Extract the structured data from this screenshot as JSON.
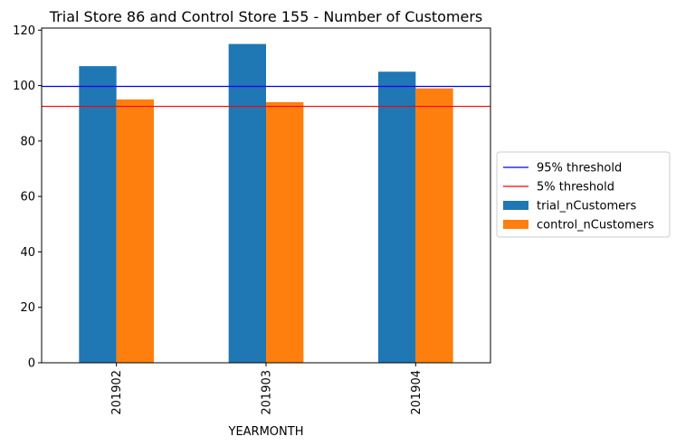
{
  "chart_data": {
    "type": "bar",
    "title": "Trial Store 86 and Control Store 155 - Number of Customers",
    "xlabel": "YEARMONTH",
    "ylabel": "",
    "categories": [
      "201902",
      "201903",
      "201904"
    ],
    "series": [
      {
        "name": "trial_nCustomers",
        "values": [
          107,
          115,
          105
        ],
        "color": "#1f77b4"
      },
      {
        "name": "control_nCustomers",
        "values": [
          95,
          94,
          99
        ],
        "color": "#ff7f0e"
      }
    ],
    "thresholds": [
      {
        "name": "95% threshold",
        "value": 99.7,
        "color": "#0000ff"
      },
      {
        "name": "5% threshold",
        "value": 92.5,
        "color": "#ff0000"
      }
    ],
    "ylim": [
      0,
      120.75
    ],
    "yticks": [
      0,
      20,
      40,
      60,
      80,
      100,
      120
    ],
    "grid": false,
    "legend_position": "center-right outside"
  }
}
